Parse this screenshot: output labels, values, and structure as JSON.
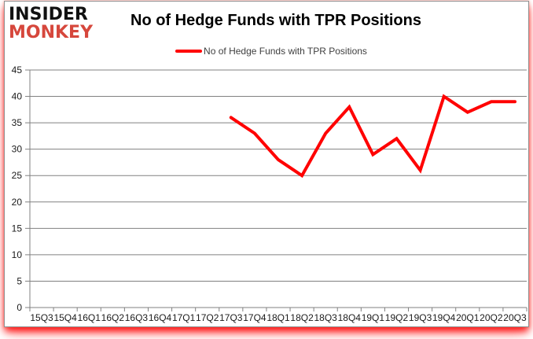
{
  "logo": {
    "line1": "INSIDER",
    "line2": "MONKEY"
  },
  "header": {
    "title": "No of Hedge Funds with TPR Positions"
  },
  "legend": {
    "label": "No of Hedge Funds with TPR Positions",
    "color": "#ff0000"
  },
  "chart_data": {
    "type": "line",
    "title": "No of Hedge Funds with TPR Positions",
    "categories": [
      "15Q3",
      "15Q4",
      "16Q1",
      "16Q2",
      "16Q3",
      "16Q4",
      "17Q1",
      "17Q2",
      "17Q3",
      "17Q4",
      "18Q1",
      "18Q2",
      "18Q3",
      "18Q4",
      "19Q1",
      "19Q2",
      "19Q3",
      "19Q4",
      "20Q1",
      "20Q2",
      "20Q3"
    ],
    "series": [
      {
        "name": "No of Hedge Funds with TPR Positions",
        "color": "#ff0000",
        "values": [
          null,
          null,
          null,
          null,
          null,
          null,
          null,
          null,
          36,
          33,
          28,
          25,
          33,
          38,
          29,
          32,
          26,
          40,
          37,
          39,
          39
        ]
      }
    ],
    "xlabel": "",
    "ylabel": "",
    "ylim": [
      0,
      45
    ],
    "ytick_step": 5,
    "grid": true,
    "legend_position": "top"
  },
  "colors": {
    "grid": "#808080",
    "axis_text": "#1a1a1a",
    "line": "#ff0000",
    "logo_black": "#111111",
    "logo_red": "#d6473c",
    "shadow": "#ff0000"
  }
}
